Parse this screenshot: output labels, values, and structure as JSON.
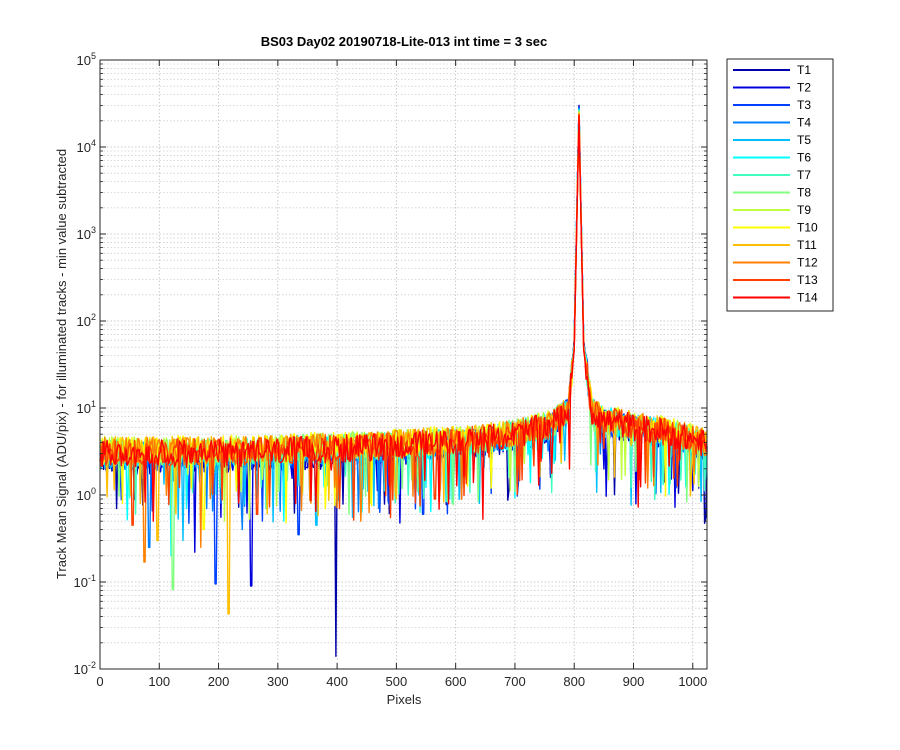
{
  "chart_data": {
    "type": "line",
    "title": "BS03 Day02 20190718-Lite-013 int time = 3 sec",
    "xlabel": "Pixels",
    "ylabel": "Track Mean Signal (ADU/pix) - for illuminated tracks - min value subtracted",
    "xlim": [
      0,
      1024
    ],
    "ylim": [
      0.01,
      100000
    ],
    "yscale": "log",
    "grid": true,
    "minor_grid": true,
    "legend_position": "outside-top-right",
    "x_ticks": [
      0,
      100,
      200,
      300,
      400,
      500,
      600,
      700,
      800,
      900,
      1000
    ],
    "x_tick_labels": [
      "0",
      "100",
      "200",
      "300",
      "400",
      "500",
      "600",
      "700",
      "800",
      "900",
      "1000"
    ],
    "y_ticks": [
      0.01,
      0.1,
      1,
      10,
      100,
      1000,
      10000,
      100000
    ],
    "y_tick_labels": [
      {
        "base": "10",
        "exp": "-2"
      },
      {
        "base": "10",
        "exp": "-1"
      },
      {
        "base": "10",
        "exp": "0"
      },
      {
        "base": "10",
        "exp": "1"
      },
      {
        "base": "10",
        "exp": "2"
      },
      {
        "base": "10",
        "exp": "3"
      },
      {
        "base": "10",
        "exp": "4"
      },
      {
        "base": "10",
        "exp": "5"
      }
    ],
    "peak": {
      "x": 808,
      "y": 28000
    },
    "series": [
      {
        "name": "T1",
        "color": "#0000aa",
        "baseline": [
          [
            0,
            2.6
          ],
          [
            200,
            2.6
          ],
          [
            400,
            3.0
          ],
          [
            600,
            3.6
          ],
          [
            700,
            4.6
          ],
          [
            760,
            6.0
          ],
          [
            790,
            9.5
          ],
          [
            800,
            60
          ],
          [
            808,
            30000
          ],
          [
            816,
            60
          ],
          [
            830,
            9.0
          ],
          [
            850,
            7.0
          ],
          [
            900,
            5.8
          ],
          [
            950,
            5.0
          ],
          [
            1000,
            4.0
          ],
          [
            1024,
            3.4
          ]
        ],
        "dips": [
          [
            28,
            0.7
          ],
          [
            398,
            0.014
          ],
          [
            610,
            0.9
          ]
        ]
      },
      {
        "name": "T2",
        "color": "#0000dd",
        "baseline": [
          [
            0,
            2.7
          ],
          [
            200,
            2.7
          ],
          [
            400,
            3.1
          ],
          [
            600,
            3.7
          ],
          [
            700,
            4.7
          ],
          [
            760,
            6.1
          ],
          [
            790,
            9.6
          ],
          [
            800,
            58
          ],
          [
            808,
            29000
          ],
          [
            816,
            58
          ],
          [
            830,
            9.1
          ],
          [
            850,
            7.1
          ],
          [
            900,
            5.9
          ],
          [
            950,
            5.1
          ],
          [
            1000,
            4.1
          ],
          [
            1024,
            3.5
          ]
        ],
        "dips": [
          [
            160,
            0.22
          ],
          [
            255,
            0.09
          ],
          [
            1010,
            1.2
          ]
        ]
      },
      {
        "name": "T3",
        "color": "#0040ff",
        "baseline": [
          [
            0,
            2.8
          ],
          [
            200,
            2.8
          ],
          [
            400,
            3.2
          ],
          [
            600,
            3.8
          ],
          [
            700,
            4.8
          ],
          [
            760,
            6.2
          ],
          [
            790,
            9.7
          ],
          [
            800,
            57
          ],
          [
            808,
            28500
          ],
          [
            816,
            57
          ],
          [
            830,
            9.2
          ],
          [
            850,
            7.2
          ],
          [
            900,
            6.0
          ],
          [
            950,
            5.2
          ],
          [
            1000,
            4.2
          ],
          [
            1024,
            3.6
          ]
        ],
        "dips": [
          [
            195,
            0.095
          ],
          [
            335,
            0.35
          ],
          [
            545,
            0.6
          ]
        ]
      },
      {
        "name": "T4",
        "color": "#0080ff",
        "baseline": [
          [
            0,
            2.9
          ],
          [
            200,
            2.9
          ],
          [
            400,
            3.3
          ],
          [
            600,
            3.9
          ],
          [
            700,
            4.9
          ],
          [
            760,
            6.3
          ],
          [
            790,
            9.8
          ],
          [
            800,
            56
          ],
          [
            808,
            28000
          ],
          [
            816,
            56
          ],
          [
            830,
            9.3
          ],
          [
            850,
            7.3
          ],
          [
            900,
            6.1
          ],
          [
            950,
            5.3
          ],
          [
            1000,
            4.3
          ],
          [
            1024,
            3.7
          ]
        ],
        "dips": [
          [
            83,
            0.25
          ],
          [
            240,
            0.4
          ],
          [
            470,
            0.7
          ]
        ]
      },
      {
        "name": "T5",
        "color": "#00bfff",
        "baseline": [
          [
            0,
            3.0
          ],
          [
            200,
            3.0
          ],
          [
            400,
            3.4
          ],
          [
            600,
            4.0
          ],
          [
            700,
            5.0
          ],
          [
            760,
            6.4
          ],
          [
            790,
            9.9
          ],
          [
            800,
            55
          ],
          [
            808,
            27500
          ],
          [
            816,
            55
          ],
          [
            830,
            9.4
          ],
          [
            850,
            7.4
          ],
          [
            900,
            6.2
          ],
          [
            950,
            5.4
          ],
          [
            1000,
            4.4
          ],
          [
            1024,
            3.8
          ]
        ],
        "dips": [
          [
            140,
            0.3
          ],
          [
            365,
            0.45
          ],
          [
            640,
            0.8
          ]
        ]
      },
      {
        "name": "T6",
        "color": "#00ffff",
        "baseline": [
          [
            0,
            3.1
          ],
          [
            200,
            3.1
          ],
          [
            400,
            3.5
          ],
          [
            600,
            4.1
          ],
          [
            700,
            5.1
          ],
          [
            760,
            6.5
          ],
          [
            790,
            10.0
          ],
          [
            800,
            54
          ],
          [
            808,
            27000
          ],
          [
            816,
            54
          ],
          [
            830,
            9.5
          ],
          [
            850,
            7.5
          ],
          [
            900,
            6.3
          ],
          [
            950,
            5.5
          ],
          [
            1000,
            4.5
          ],
          [
            1024,
            3.9
          ]
        ],
        "dips": [
          [
            120,
            0.2
          ],
          [
            310,
            0.5
          ],
          [
            590,
            0.9
          ]
        ]
      },
      {
        "name": "T7",
        "color": "#40ffbf",
        "baseline": [
          [
            0,
            3.2
          ],
          [
            200,
            3.2
          ],
          [
            400,
            3.6
          ],
          [
            600,
            4.2
          ],
          [
            700,
            5.2
          ],
          [
            760,
            6.6
          ],
          [
            790,
            10.1
          ],
          [
            800,
            53
          ],
          [
            808,
            26500
          ],
          [
            816,
            53
          ],
          [
            830,
            9.6
          ],
          [
            850,
            7.6
          ],
          [
            900,
            6.4
          ],
          [
            950,
            5.6
          ],
          [
            1000,
            4.6
          ],
          [
            1024,
            4.0
          ]
        ],
        "dips": [
          [
            60,
            0.6
          ],
          [
            280,
            0.7
          ],
          [
            520,
            1.0
          ]
        ]
      },
      {
        "name": "T8",
        "color": "#80ff80",
        "baseline": [
          [
            0,
            3.3
          ],
          [
            200,
            3.3
          ],
          [
            400,
            3.7
          ],
          [
            600,
            4.3
          ],
          [
            700,
            5.3
          ],
          [
            760,
            6.7
          ],
          [
            790,
            10.2
          ],
          [
            800,
            52
          ],
          [
            808,
            26000
          ],
          [
            816,
            52
          ],
          [
            830,
            9.7
          ],
          [
            850,
            7.7
          ],
          [
            900,
            6.5
          ],
          [
            950,
            5.7
          ],
          [
            1000,
            4.7
          ],
          [
            1024,
            4.1
          ]
        ],
        "dips": [
          [
            123,
            0.082
          ],
          [
            420,
            0.6
          ],
          [
            700,
            1.1
          ]
        ]
      },
      {
        "name": "T9",
        "color": "#bfff40",
        "baseline": [
          [
            0,
            3.4
          ],
          [
            200,
            3.4
          ],
          [
            400,
            3.8
          ],
          [
            600,
            4.4
          ],
          [
            700,
            5.4
          ],
          [
            760,
            6.8
          ],
          [
            790,
            10.3
          ],
          [
            800,
            51
          ],
          [
            808,
            25500
          ],
          [
            816,
            51
          ],
          [
            830,
            9.8
          ],
          [
            850,
            7.8
          ],
          [
            900,
            6.6
          ],
          [
            950,
            5.8
          ],
          [
            1000,
            4.8
          ],
          [
            1024,
            4.2
          ]
        ],
        "dips": [
          [
            210,
            0.5
          ],
          [
            455,
            0.8
          ],
          [
            880,
            1.5
          ]
        ]
      },
      {
        "name": "T10",
        "color": "#ffff00",
        "baseline": [
          [
            0,
            3.5
          ],
          [
            200,
            3.5
          ],
          [
            400,
            3.9
          ],
          [
            600,
            4.5
          ],
          [
            700,
            5.5
          ],
          [
            760,
            6.9
          ],
          [
            790,
            10.4
          ],
          [
            800,
            50
          ],
          [
            808,
            25000
          ],
          [
            816,
            50
          ],
          [
            830,
            9.9
          ],
          [
            850,
            7.9
          ],
          [
            900,
            6.7
          ],
          [
            950,
            5.9
          ],
          [
            1000,
            4.9
          ],
          [
            1024,
            4.3
          ]
        ],
        "dips": [
          [
            175,
            0.4
          ],
          [
            380,
            0.7
          ],
          [
            660,
            1.2
          ]
        ]
      },
      {
        "name": "T11",
        "color": "#ffbf00",
        "baseline": [
          [
            0,
            3.4
          ],
          [
            200,
            3.4
          ],
          [
            400,
            3.8
          ],
          [
            600,
            4.4
          ],
          [
            700,
            5.4
          ],
          [
            760,
            6.8
          ],
          [
            790,
            10.3
          ],
          [
            800,
            49
          ],
          [
            808,
            24500
          ],
          [
            816,
            49
          ],
          [
            830,
            9.8
          ],
          [
            850,
            7.8
          ],
          [
            900,
            6.6
          ],
          [
            950,
            5.8
          ],
          [
            1000,
            4.8
          ],
          [
            1024,
            4.2
          ]
        ],
        "dips": [
          [
            217,
            0.043
          ],
          [
            97,
            0.3
          ],
          [
            500,
            0.9
          ]
        ]
      },
      {
        "name": "T12",
        "color": "#ff8000",
        "baseline": [
          [
            0,
            3.3
          ],
          [
            200,
            3.3
          ],
          [
            400,
            3.7
          ],
          [
            600,
            4.3
          ],
          [
            700,
            5.3
          ],
          [
            760,
            6.7
          ],
          [
            790,
            10.2
          ],
          [
            800,
            48
          ],
          [
            808,
            24000
          ],
          [
            816,
            48
          ],
          [
            830,
            9.7
          ],
          [
            850,
            7.7
          ],
          [
            900,
            6.5
          ],
          [
            950,
            5.7
          ],
          [
            1000,
            4.7
          ],
          [
            1024,
            4.1
          ]
        ],
        "dips": [
          [
            75,
            0.17
          ],
          [
            170,
            0.25
          ],
          [
            440,
            0.5
          ]
        ]
      },
      {
        "name": "T13",
        "color": "#ff4000",
        "baseline": [
          [
            0,
            3.2
          ],
          [
            200,
            3.2
          ],
          [
            400,
            3.6
          ],
          [
            600,
            4.2
          ],
          [
            700,
            5.2
          ],
          [
            760,
            6.6
          ],
          [
            790,
            10.1
          ],
          [
            800,
            47
          ],
          [
            808,
            23500
          ],
          [
            816,
            47
          ],
          [
            830,
            9.6
          ],
          [
            850,
            7.6
          ],
          [
            900,
            6.4
          ],
          [
            950,
            5.6
          ],
          [
            1000,
            4.6
          ],
          [
            1024,
            4.0
          ]
        ],
        "dips": [
          [
            55,
            0.45
          ],
          [
            265,
            0.6
          ],
          [
            565,
            0.9
          ]
        ]
      },
      {
        "name": "T14",
        "color": "#ff0000",
        "baseline": [
          [
            0,
            3.1
          ],
          [
            200,
            3.1
          ],
          [
            400,
            3.5
          ],
          [
            600,
            4.1
          ],
          [
            700,
            5.1
          ],
          [
            760,
            6.5
          ],
          [
            790,
            10.0
          ],
          [
            800,
            46
          ],
          [
            808,
            23000
          ],
          [
            816,
            46
          ],
          [
            830,
            9.5
          ],
          [
            850,
            7.5
          ],
          [
            900,
            6.3
          ],
          [
            950,
            5.5
          ],
          [
            1000,
            4.5
          ],
          [
            1024,
            3.9
          ]
        ],
        "dips": [
          [
            90,
            0.5
          ],
          [
            330,
            0.8
          ],
          [
            740,
            1.3
          ]
        ]
      }
    ]
  }
}
